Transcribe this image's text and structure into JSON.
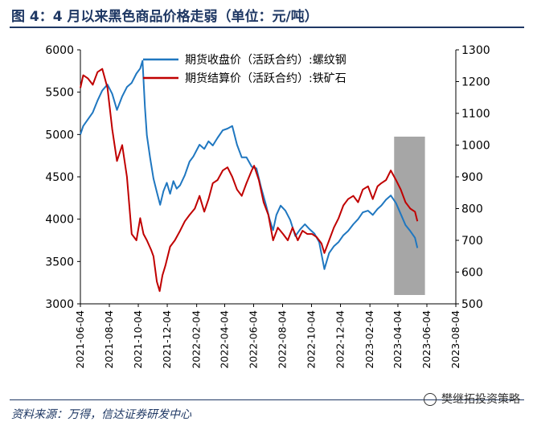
{
  "title": "图 4：4 月以来黑色商品价格走弱（单位：元/吨）",
  "source": "资料来源：万得，信达证券研发中心",
  "watermark": "樊继拓投资策略",
  "colors": {
    "rebar": "#1f77c0",
    "iron_ore": "#c00000",
    "shade": "#a6a6a6",
    "frame": "#1f3864"
  },
  "chart_data": {
    "type": "line",
    "title": "4 月以来黑色商品价格走弱",
    "unit": "元/吨",
    "x_tick_labels": [
      "2021-06-04",
      "2021-08-04",
      "2021-10-04",
      "2021-12-04",
      "2022-02-04",
      "2022-04-04",
      "2022-06-04",
      "2022-08-04",
      "2022-10-04",
      "2022-12-04",
      "2023-02-04",
      "2023-04-04",
      "2023-06-04",
      "2023-08-04"
    ],
    "x_range": [
      "2021-06-04",
      "2023-08-04"
    ],
    "y_left": {
      "range": [
        3000,
        6000
      ],
      "ticks": [
        3000,
        3500,
        4000,
        4500,
        5000,
        5500,
        6000
      ]
    },
    "y_right": {
      "range": [
        500,
        1300
      ],
      "ticks": [
        500,
        600,
        700,
        800,
        900,
        1000,
        1100,
        1200,
        1300
      ]
    },
    "shaded_period": [
      "2023-03-27",
      "2023-05-31"
    ],
    "legend_position": "top-left",
    "series": [
      {
        "name": "期货收盘价（活跃合约）:螺纹钢",
        "axis": "left",
        "color": "#1f77c0",
        "points": [
          [
            "2021-06-04",
            5000
          ],
          [
            "2021-06-10",
            5100
          ],
          [
            "2021-06-20",
            5180
          ],
          [
            "2021-06-30",
            5260
          ],
          [
            "2021-07-10",
            5400
          ],
          [
            "2021-07-20",
            5520
          ],
          [
            "2021-07-31",
            5590
          ],
          [
            "2021-08-10",
            5480
          ],
          [
            "2021-08-20",
            5290
          ],
          [
            "2021-08-31",
            5450
          ],
          [
            "2021-09-10",
            5560
          ],
          [
            "2021-09-20",
            5610
          ],
          [
            "2021-09-30",
            5720
          ],
          [
            "2021-10-08",
            5780
          ],
          [
            "2021-10-13",
            5870
          ],
          [
            "2021-10-18",
            5320
          ],
          [
            "2021-10-22",
            4990
          ],
          [
            "2021-10-29",
            4720
          ],
          [
            "2021-11-05",
            4480
          ],
          [
            "2021-11-12",
            4320
          ],
          [
            "2021-11-19",
            4170
          ],
          [
            "2021-11-26",
            4330
          ],
          [
            "2021-12-03",
            4430
          ],
          [
            "2021-12-10",
            4300
          ],
          [
            "2021-12-17",
            4450
          ],
          [
            "2021-12-24",
            4360
          ],
          [
            "2021-12-31",
            4400
          ],
          [
            "2022-01-10",
            4520
          ],
          [
            "2022-01-20",
            4680
          ],
          [
            "2022-01-28",
            4740
          ],
          [
            "2022-02-10",
            4880
          ],
          [
            "2022-02-20",
            4830
          ],
          [
            "2022-03-01",
            4920
          ],
          [
            "2022-03-10",
            4870
          ],
          [
            "2022-03-20",
            4960
          ],
          [
            "2022-03-31",
            5050
          ],
          [
            "2022-04-10",
            5070
          ],
          [
            "2022-04-20",
            5100
          ],
          [
            "2022-04-30",
            4880
          ],
          [
            "2022-05-10",
            4730
          ],
          [
            "2022-05-20",
            4730
          ],
          [
            "2022-05-31",
            4620
          ],
          [
            "2022-06-10",
            4600
          ],
          [
            "2022-06-20",
            4370
          ],
          [
            "2022-06-30",
            4170
          ],
          [
            "2022-07-08",
            3990
          ],
          [
            "2022-07-15",
            3870
          ],
          [
            "2022-07-22",
            4050
          ],
          [
            "2022-07-31",
            4160
          ],
          [
            "2022-08-10",
            4100
          ],
          [
            "2022-08-20",
            3990
          ],
          [
            "2022-08-31",
            3800
          ],
          [
            "2022-09-10",
            3880
          ],
          [
            "2022-09-20",
            3940
          ],
          [
            "2022-09-30",
            3880
          ],
          [
            "2022-10-10",
            3830
          ],
          [
            "2022-10-20",
            3730
          ],
          [
            "2022-10-31",
            3410
          ],
          [
            "2022-11-10",
            3600
          ],
          [
            "2022-11-20",
            3680
          ],
          [
            "2022-11-30",
            3730
          ],
          [
            "2022-12-10",
            3810
          ],
          [
            "2022-12-20",
            3860
          ],
          [
            "2022-12-31",
            3940
          ],
          [
            "2023-01-10",
            4000
          ],
          [
            "2023-01-20",
            4080
          ],
          [
            "2023-01-31",
            4100
          ],
          [
            "2023-02-10",
            4050
          ],
          [
            "2023-02-20",
            4120
          ],
          [
            "2023-02-28",
            4160
          ],
          [
            "2023-03-10",
            4230
          ],
          [
            "2023-03-20",
            4280
          ],
          [
            "2023-03-31",
            4190
          ],
          [
            "2023-04-10",
            4060
          ],
          [
            "2023-04-20",
            3930
          ],
          [
            "2023-04-30",
            3860
          ],
          [
            "2023-05-10",
            3780
          ],
          [
            "2023-05-15",
            3660
          ]
        ]
      },
      {
        "name": "期货结算价（活跃合约）:铁矿石",
        "axis": "right",
        "color": "#c00000",
        "points": [
          [
            "2021-06-04",
            1180
          ],
          [
            "2021-06-10",
            1220
          ],
          [
            "2021-06-20",
            1210
          ],
          [
            "2021-06-30",
            1190
          ],
          [
            "2021-07-10",
            1230
          ],
          [
            "2021-07-20",
            1240
          ],
          [
            "2021-07-31",
            1180
          ],
          [
            "2021-08-10",
            1050
          ],
          [
            "2021-08-20",
            950
          ],
          [
            "2021-08-31",
            1000
          ],
          [
            "2021-09-10",
            900
          ],
          [
            "2021-09-20",
            720
          ],
          [
            "2021-09-30",
            700
          ],
          [
            "2021-10-08",
            770
          ],
          [
            "2021-10-15",
            720
          ],
          [
            "2021-10-22",
            700
          ],
          [
            "2021-10-31",
            670
          ],
          [
            "2021-11-05",
            650
          ],
          [
            "2021-11-12",
            570
          ],
          [
            "2021-11-18",
            540
          ],
          [
            "2021-11-24",
            590
          ],
          [
            "2021-11-30",
            620
          ],
          [
            "2021-12-10",
            680
          ],
          [
            "2021-12-20",
            700
          ],
          [
            "2021-12-31",
            730
          ],
          [
            "2022-01-10",
            760
          ],
          [
            "2022-01-20",
            780
          ],
          [
            "2022-01-31",
            800
          ],
          [
            "2022-02-10",
            840
          ],
          [
            "2022-02-20",
            790
          ],
          [
            "2022-03-01",
            830
          ],
          [
            "2022-03-10",
            880
          ],
          [
            "2022-03-20",
            890
          ],
          [
            "2022-03-31",
            920
          ],
          [
            "2022-04-10",
            930
          ],
          [
            "2022-04-20",
            900
          ],
          [
            "2022-04-30",
            860
          ],
          [
            "2022-05-10",
            840
          ],
          [
            "2022-05-20",
            880
          ],
          [
            "2022-05-31",
            920
          ],
          [
            "2022-06-05",
            935
          ],
          [
            "2022-06-15",
            890
          ],
          [
            "2022-06-25",
            820
          ],
          [
            "2022-07-05",
            780
          ],
          [
            "2022-07-15",
            700
          ],
          [
            "2022-07-25",
            740
          ],
          [
            "2022-08-05",
            720
          ],
          [
            "2022-08-15",
            700
          ],
          [
            "2022-08-25",
            740
          ],
          [
            "2022-09-05",
            700
          ],
          [
            "2022-09-15",
            730
          ],
          [
            "2022-09-25",
            720
          ],
          [
            "2022-10-05",
            720
          ],
          [
            "2022-10-15",
            710
          ],
          [
            "2022-10-25",
            690
          ],
          [
            "2022-10-31",
            660
          ],
          [
            "2022-11-10",
            700
          ],
          [
            "2022-11-20",
            740
          ],
          [
            "2022-11-30",
            770
          ],
          [
            "2022-12-10",
            810
          ],
          [
            "2022-12-20",
            830
          ],
          [
            "2022-12-31",
            840
          ],
          [
            "2023-01-10",
            820
          ],
          [
            "2023-01-20",
            860
          ],
          [
            "2023-01-31",
            870
          ],
          [
            "2023-02-10",
            830
          ],
          [
            "2023-02-20",
            870
          ],
          [
            "2023-02-28",
            880
          ],
          [
            "2023-03-10",
            890
          ],
          [
            "2023-03-20",
            920
          ],
          [
            "2023-03-31",
            890
          ],
          [
            "2023-04-10",
            860
          ],
          [
            "2023-04-20",
            820
          ],
          [
            "2023-04-30",
            800
          ],
          [
            "2023-05-10",
            790
          ],
          [
            "2023-05-15",
            760
          ]
        ]
      }
    ]
  }
}
